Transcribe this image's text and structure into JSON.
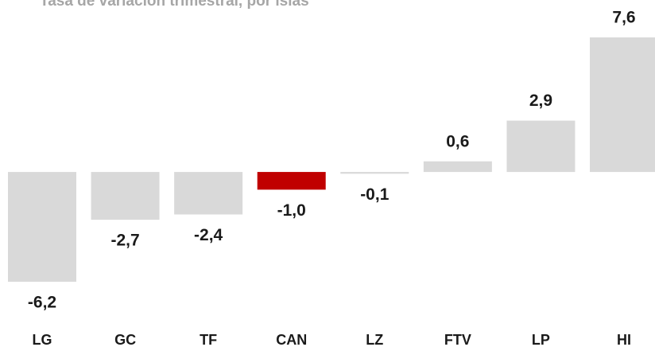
{
  "chart_data": {
    "type": "bar",
    "title": "Tasa de variación trimestral, por islas",
    "categories": [
      "LG",
      "GC",
      "TF",
      "CAN",
      "LZ",
      "FTV",
      "LP",
      "HI"
    ],
    "values": [
      -6.2,
      -2.7,
      -2.4,
      -1.0,
      -0.1,
      0.6,
      2.9,
      7.6
    ],
    "value_labels": [
      "-6,2",
      "-2,7",
      "-2,4",
      "-1,0",
      "-0,1",
      "0,6",
      "2,9",
      "7,6"
    ],
    "colors": [
      "#d9d9d9",
      "#d9d9d9",
      "#d9d9d9",
      "#c00000",
      "#d9d9d9",
      "#d9d9d9",
      "#d9d9d9",
      "#d9d9d9"
    ]
  }
}
